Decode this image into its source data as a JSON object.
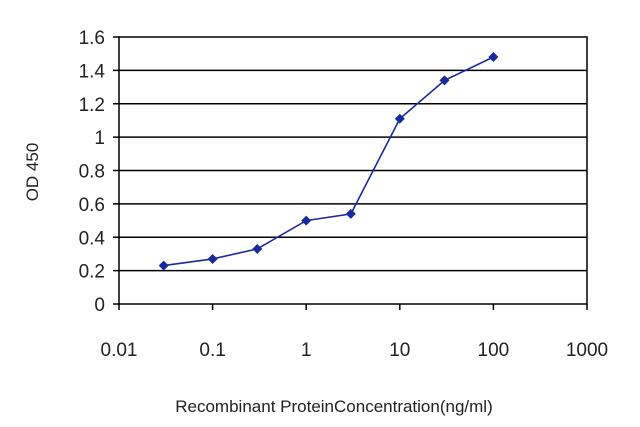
{
  "chart_data": {
    "type": "line",
    "title": "",
    "xlabel": "Recombinant ProteinConcentration(ng/ml)",
    "ylabel": "OD 450",
    "x_scale": "log",
    "xlim": [
      0.01,
      1000
    ],
    "ylim": [
      0,
      1.6
    ],
    "x_ticks": [
      "0.01",
      "0.1",
      "1",
      "10",
      "100",
      "1000"
    ],
    "y_ticks": [
      "0",
      "0.2",
      "0.4",
      "0.6",
      "0.8",
      "1",
      "1.2",
      "1.4",
      "1.6"
    ],
    "grid": "horizontal",
    "legend": "none",
    "colors": {
      "series": "#1a2a9a",
      "grid": "#000000"
    },
    "series": [
      {
        "x": [
          0.03,
          0.1,
          0.3,
          1,
          3,
          10,
          30,
          100
        ],
        "y": [
          0.23,
          0.27,
          0.33,
          0.5,
          0.54,
          1.11,
          1.34,
          1.48
        ]
      }
    ]
  }
}
